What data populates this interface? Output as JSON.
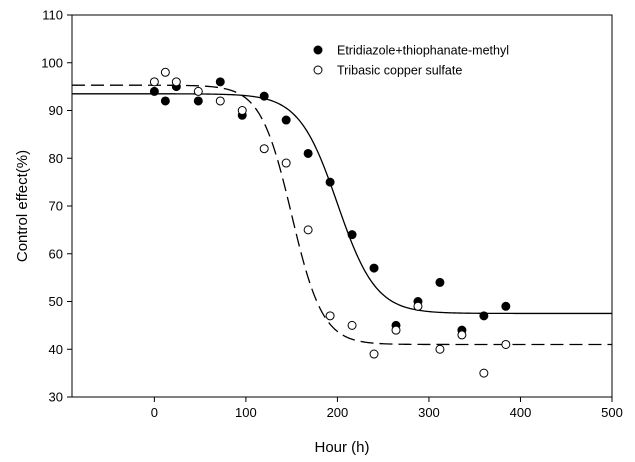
{
  "chart_data": {
    "type": "scatter",
    "xlabel": "Hour (h)",
    "ylabel": "Control effect(%)",
    "xlim": [
      -90,
      500
    ],
    "ylim": [
      30,
      110
    ],
    "x_ticks": [
      0,
      100,
      200,
      300,
      400,
      500
    ],
    "y_ticks": [
      30,
      40,
      50,
      60,
      70,
      80,
      90,
      100,
      110
    ],
    "grid": false,
    "legend_position": "top-right",
    "series": [
      {
        "name": "Etridiazole+thiophanate-methyl",
        "marker": "filled-circle",
        "color": "#000000",
        "x": [
          0,
          12,
          24,
          48,
          72,
          96,
          120,
          144,
          168,
          192,
          216,
          240,
          264,
          288,
          312,
          336,
          360,
          384
        ],
        "y": [
          94,
          92,
          95,
          92,
          96,
          89,
          93,
          88,
          81,
          75,
          64,
          57,
          45,
          50,
          54,
          44,
          47,
          49
        ],
        "fit": {
          "style": "solid",
          "model": "sigmoid",
          "upper": 93.5,
          "lower": 47.5,
          "midpoint": 200,
          "slope": 21
        }
      },
      {
        "name": "Tribasic copper sulfate",
        "marker": "open-circle",
        "color": "#000000",
        "x": [
          0,
          12,
          24,
          48,
          72,
          96,
          120,
          144,
          168,
          192,
          216,
          240,
          264,
          288,
          312,
          336,
          360,
          384
        ],
        "y": [
          96,
          98,
          96,
          94,
          92,
          90,
          82,
          79,
          65,
          47,
          45,
          39,
          44,
          49,
          40,
          43,
          35,
          41
        ],
        "fit": {
          "style": "dashed",
          "model": "sigmoid",
          "upper": 95.3,
          "lower": 41,
          "midpoint": 150,
          "slope": 17
        }
      }
    ]
  }
}
